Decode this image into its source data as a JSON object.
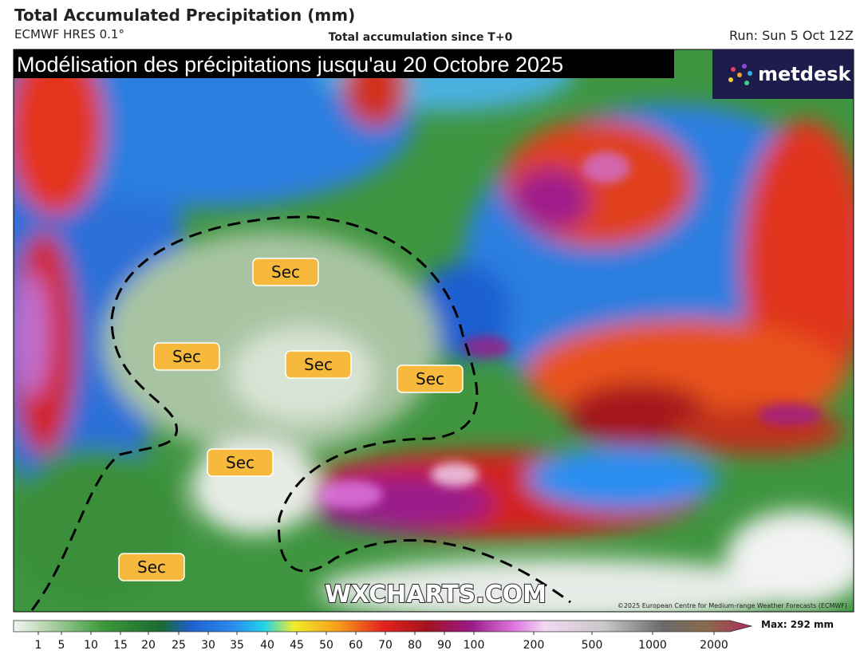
{
  "header": {
    "title": "Total Accumulated Precipitation (mm)",
    "model": "ECMWF HRES 0.1°",
    "subtitle": "Total accumulation since T+0",
    "run": "Run: Sun 5 Oct 12Z"
  },
  "banner": "Modélisation des précipitations jusqu'au 20 Octobre 2025",
  "logo": "metdesk",
  "map_labels": [
    "Sec",
    "Sec",
    "Sec",
    "Sec",
    "Sec",
    "Sec"
  ],
  "watermark": "WXCHARTS.COM",
  "copyright": "©2025 European Centre for Medium-range Weather Forecasts (ECMWF)",
  "colorbar": {
    "ticks": [
      1,
      5,
      10,
      15,
      20,
      25,
      30,
      35,
      40,
      45,
      50,
      60,
      70,
      80,
      90,
      100,
      200,
      500,
      1000,
      2000
    ],
    "max": "Max: 292 mm"
  }
}
